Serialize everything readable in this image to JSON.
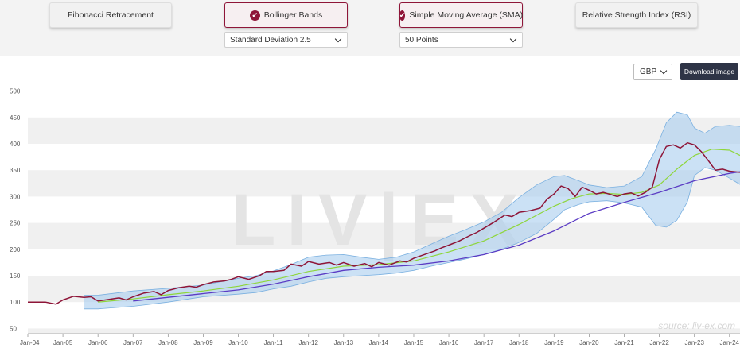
{
  "indicators": {
    "fibonacci": {
      "label": "Fibonacci Retracement",
      "active": false
    },
    "bollinger": {
      "label": "Bollinger Bands",
      "active": true,
      "option": "Standard Deviation 2.5"
    },
    "sma": {
      "label": "Simple Moving Average (SMA)",
      "active": true,
      "option": "50 Points"
    },
    "rsi": {
      "label": "Relative Strength Index (RSI)",
      "active": false
    }
  },
  "controls": {
    "currency": "GBP",
    "download_label": "Download image"
  },
  "watermark": {
    "logo": "LIV|EX",
    "source": "source: liv-ex.com"
  },
  "colors": {
    "index_line": "#8e1538",
    "sma_line": "#8ed63a",
    "long_ma_line": "#5b3cc4",
    "band_fill": "#a9cdef",
    "band_edge": "#7ab0e0",
    "accent": "#8e1538"
  },
  "chart_data": {
    "type": "line",
    "title": "",
    "xlabel": "",
    "ylabel": "",
    "ylim": [
      40,
      510
    ],
    "yticks": [
      50,
      100,
      150,
      200,
      250,
      300,
      350,
      400,
      450,
      500
    ],
    "xlim": [
      2004.0,
      2024.3
    ],
    "xtick_labels": [
      "Jan-04",
      "Jan-05",
      "Jan-06",
      "Jan-07",
      "Jan-08",
      "Jan-09",
      "Jan-10",
      "Jan-11",
      "Jan-12",
      "Jan-13",
      "Jan-14",
      "Jan-15",
      "Jan-16",
      "Jan-17",
      "Jan-18",
      "Jan-19",
      "Jan-20",
      "Jan-21",
      "Jan-22",
      "Jan-23",
      "Jan-24"
    ],
    "grid": "alternating horizontal bands",
    "series": [
      {
        "role": "index",
        "x": [
          2004.0,
          2004.5,
          2004.8,
          2005.0,
          2005.3,
          2005.6,
          2005.8,
          2006.0,
          2006.3,
          2006.6,
          2006.8,
          2007.0,
          2007.3,
          2007.6,
          2007.8,
          2008.0,
          2008.3,
          2008.6,
          2008.8,
          2009.0,
          2009.3,
          2009.6,
          2009.8,
          2010.0,
          2010.3,
          2010.6,
          2010.8,
          2011.0,
          2011.3,
          2011.5,
          2011.8,
          2012.0,
          2012.3,
          2012.6,
          2012.8,
          2013.0,
          2013.3,
          2013.6,
          2013.8,
          2014.0,
          2014.3,
          2014.6,
          2014.8,
          2015.0,
          2015.3,
          2015.6,
          2015.8,
          2016.0,
          2016.3,
          2016.6,
          2016.8,
          2017.0,
          2017.3,
          2017.6,
          2017.8,
          2018.0,
          2018.3,
          2018.6,
          2018.8,
          2019.0,
          2019.2,
          2019.4,
          2019.6,
          2019.8,
          2020.0,
          2020.2,
          2020.4,
          2020.6,
          2020.8,
          2021.0,
          2021.2,
          2021.4,
          2021.6,
          2021.8,
          2022.0,
          2022.2,
          2022.4,
          2022.6,
          2022.8,
          2023.0,
          2023.2,
          2023.4,
          2023.6,
          2023.8,
          2024.0,
          2024.3
        ],
        "y": [
          100,
          100,
          96,
          104,
          111,
          109,
          110,
          102,
          105,
          108,
          104,
          110,
          117,
          120,
          114,
          122,
          127,
          130,
          128,
          133,
          138,
          140,
          143,
          148,
          143,
          150,
          158,
          158,
          160,
          172,
          168,
          177,
          172,
          175,
          170,
          175,
          168,
          173,
          167,
          175,
          170,
          178,
          176,
          183,
          190,
          197,
          203,
          208,
          216,
          226,
          232,
          240,
          252,
          265,
          262,
          270,
          273,
          278,
          295,
          305,
          320,
          315,
          300,
          318,
          312,
          305,
          308,
          304,
          300,
          305,
          307,
          301,
          308,
          318,
          370,
          395,
          398,
          392,
          402,
          398,
          385,
          368,
          350,
          352,
          348,
          346
        ]
      },
      {
        "role": "sma_50",
        "x": [
          2006.0,
          2007.0,
          2008.0,
          2009.0,
          2010.0,
          2011.0,
          2012.0,
          2013.0,
          2014.0,
          2015.0,
          2016.0,
          2017.0,
          2018.0,
          2019.0,
          2019.5,
          2020.0,
          2020.5,
          2021.0,
          2021.5,
          2022.0,
          2022.5,
          2023.0,
          2023.5,
          2024.0,
          2024.3
        ],
        "y": [
          100,
          106,
          114,
          121,
          130,
          142,
          158,
          168,
          171,
          178,
          195,
          216,
          247,
          282,
          296,
          305,
          306,
          304,
          308,
          322,
          352,
          378,
          390,
          388,
          378
        ]
      },
      {
        "role": "long_ma",
        "x": [
          2007.0,
          2008.0,
          2009.0,
          2010.0,
          2011.0,
          2012.0,
          2013.0,
          2014.0,
          2015.0,
          2016.0,
          2017.0,
          2018.0,
          2019.0,
          2020.0,
          2021.0,
          2022.0,
          2023.0,
          2024.0,
          2024.3
        ],
        "y": [
          102,
          109,
          116,
          123,
          134,
          148,
          160,
          166,
          170,
          178,
          190,
          208,
          235,
          268,
          289,
          308,
          330,
          344,
          347
        ]
      },
      {
        "role": "bollinger_upper",
        "x": [
          2005.6,
          2006.0,
          2007.0,
          2008.0,
          2009.0,
          2010.0,
          2010.5,
          2011.0,
          2011.5,
          2012.0,
          2012.5,
          2013.0,
          2013.5,
          2014.0,
          2014.5,
          2015.0,
          2015.5,
          2016.0,
          2016.5,
          2017.0,
          2017.5,
          2018.0,
          2018.5,
          2019.0,
          2019.3,
          2019.7,
          2020.0,
          2020.5,
          2021.0,
          2021.5,
          2021.9,
          2022.2,
          2022.5,
          2022.8,
          2023.0,
          2023.3,
          2023.6,
          2024.0,
          2024.3
        ],
        "y": [
          113,
          113,
          121,
          126,
          132,
          145,
          150,
          159,
          171,
          185,
          189,
          190,
          185,
          181,
          185,
          195,
          210,
          225,
          238,
          252,
          270,
          298,
          322,
          338,
          340,
          330,
          322,
          317,
          320,
          338,
          390,
          440,
          460,
          455,
          430,
          420,
          433,
          435,
          433
        ]
      },
      {
        "role": "bollinger_lower",
        "x": [
          2005.6,
          2006.0,
          2007.0,
          2008.0,
          2009.0,
          2010.0,
          2010.5,
          2011.0,
          2011.5,
          2012.0,
          2012.5,
          2013.0,
          2013.5,
          2014.0,
          2014.5,
          2015.0,
          2015.5,
          2016.0,
          2016.5,
          2017.0,
          2017.5,
          2018.0,
          2018.5,
          2019.0,
          2019.3,
          2019.7,
          2020.0,
          2020.5,
          2021.0,
          2021.5,
          2021.9,
          2022.2,
          2022.5,
          2022.8,
          2023.0,
          2023.3,
          2023.6,
          2024.0,
          2024.3
        ],
        "y": [
          87,
          87,
          92,
          100,
          110,
          115,
          118,
          125,
          130,
          138,
          145,
          148,
          150,
          152,
          155,
          160,
          168,
          175,
          182,
          190,
          200,
          213,
          230,
          257,
          275,
          285,
          290,
          292,
          288,
          280,
          245,
          242,
          255,
          290,
          340,
          355,
          350,
          335,
          323
        ]
      }
    ]
  }
}
